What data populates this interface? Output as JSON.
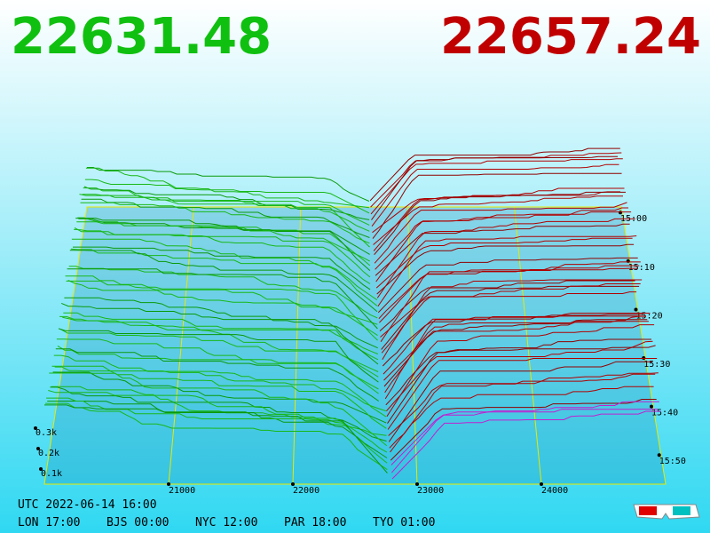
{
  "header": {
    "bid": "22631.48",
    "ask": "22657.24"
  },
  "price_axis": [
    "21000",
    "22000",
    "23000",
    "24000"
  ],
  "time_axis": [
    "15:00",
    "15:10",
    "15:20",
    "15:30",
    "15:40",
    "15:50"
  ],
  "depth_axis": [
    "0.3k",
    "0.2k",
    "0.1k"
  ],
  "footer": {
    "utc": "UTC 2022-06-14 16:00",
    "clocks": [
      "LON 17:00",
      "BJS 00:00",
      "NYC 12:00",
      "PAR 18:00",
      "TYO 01:00"
    ]
  }
}
